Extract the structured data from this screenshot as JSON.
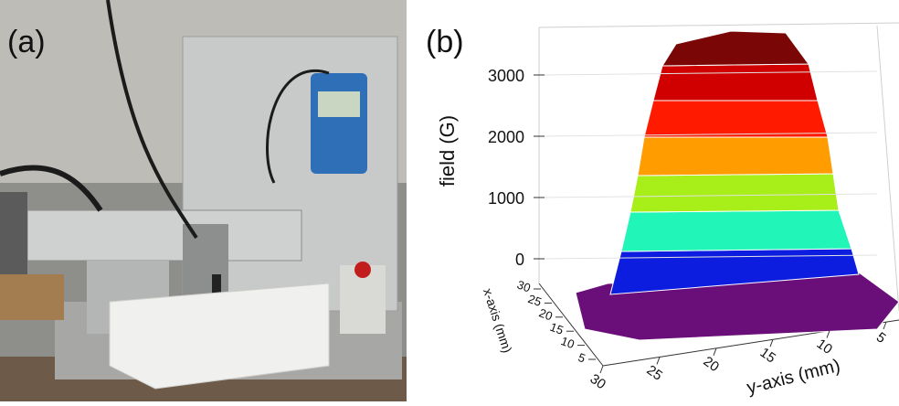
{
  "panels": [
    {
      "label": "(a)"
    },
    {
      "label": "(b)",
      "z_axis": {
        "label": "field (G)",
        "ticks": [
          0,
          1000,
          2000,
          3000
        ]
      },
      "x_axis": {
        "label": "x-axis (mm)",
        "ticks": [
          5,
          10,
          15,
          20,
          25,
          30
        ]
      },
      "y_axis": {
        "label": "y-axis (mm)",
        "ticks": [
          30,
          25,
          20,
          15,
          10,
          5
        ]
      }
    }
  ]
}
